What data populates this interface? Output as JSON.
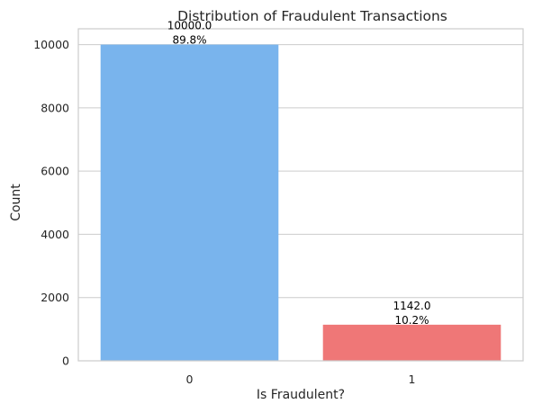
{
  "chart_data": {
    "type": "bar",
    "title": "Distribution of Fraudulent Transactions",
    "xlabel": "Is Fraudulent?",
    "ylabel": "Count",
    "categories": [
      "0",
      "1"
    ],
    "values": [
      10000,
      1142
    ],
    "value_labels": [
      "10000.0",
      "1142.0"
    ],
    "percent_labels": [
      "89.8%",
      "10.2%"
    ],
    "colors": [
      "#79b4ed",
      "#ef7777"
    ],
    "ylim": [
      0,
      10500
    ],
    "yticks": [
      0,
      2000,
      4000,
      6000,
      8000,
      10000
    ],
    "ytick_labels": [
      "0",
      "2000",
      "4000",
      "6000",
      "8000",
      "10000"
    ],
    "grid": "horizontal",
    "grid_color": "#cccccc",
    "axis_color": "#cccccc"
  }
}
